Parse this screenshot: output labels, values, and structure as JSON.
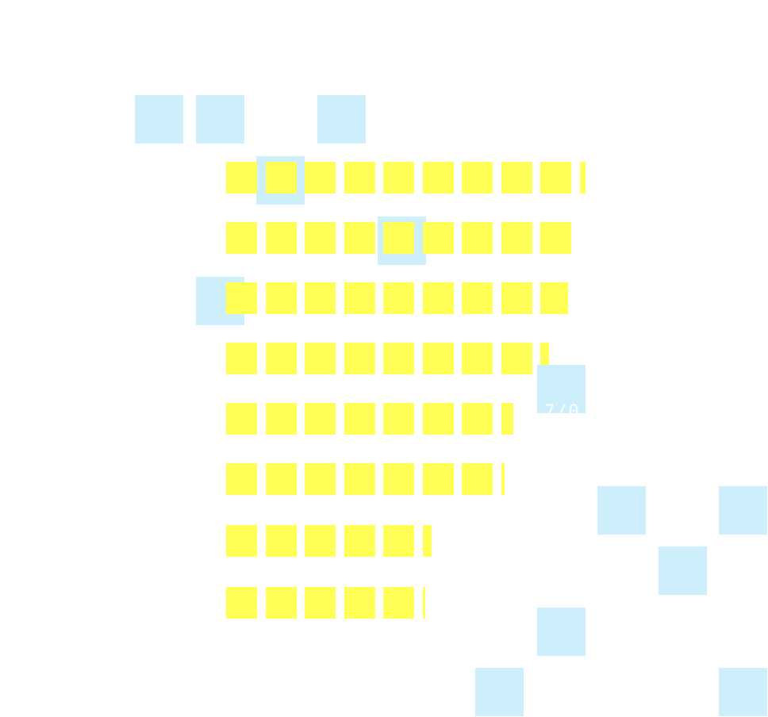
{
  "fragment_text": "7/0",
  "colors": {
    "background": "#ffffff",
    "block_yellow": "#ffff55",
    "block_blue": "#cdeffb",
    "text": "#ffffff"
  }
}
